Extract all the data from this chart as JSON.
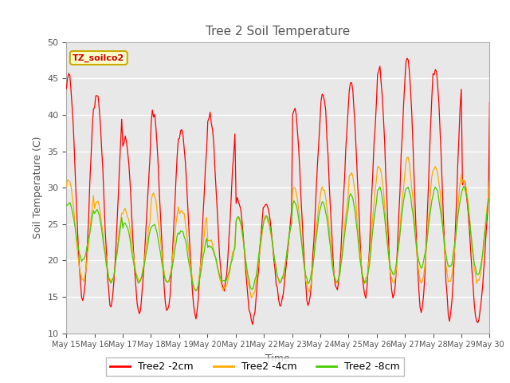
{
  "title": "Tree 2 Soil Temperature",
  "xlabel": "Time",
  "ylabel": "Soil Temperature (C)",
  "ylim": [
    10,
    50
  ],
  "annotation_text": "TZ_soilco2",
  "annotation_color": "#cc0000",
  "annotation_bg": "#ffffcc",
  "annotation_border": "#ccaa00",
  "colors": {
    "2cm": "#ff0000",
    "4cm": "#ffaa00",
    "8cm": "#44cc00"
  },
  "legend_labels": [
    "Tree2 -2cm",
    "Tree2 -4cm",
    "Tree2 -8cm"
  ],
  "plot_bg_color": "#e8e8e8",
  "fig_bg_color": "#ffffff",
  "grid_color": "#ffffff",
  "tick_labels": [
    "May 15",
    "May 16",
    "May 17",
    "May 18",
    "May 19",
    "May 20",
    "May 21",
    "May 22",
    "May 23",
    "May 24",
    "May 25",
    "May 26",
    "May 27",
    "May 28",
    "May 29",
    "May 30"
  ],
  "peaks_2cm": [
    45.5,
    43,
    37,
    40.5,
    38,
    40,
    28.5,
    28,
    41,
    43,
    44.5,
    46.5,
    48,
    46,
    31,
    44
  ],
  "troughs_2cm": [
    15,
    14,
    13,
    13,
    12.5,
    16,
    11.5,
    14,
    14,
    16,
    15,
    15,
    13,
    12,
    11.5,
    13
  ],
  "peaks_4cm": [
    31,
    28,
    27,
    29,
    27,
    23,
    26,
    26,
    30,
    30,
    32,
    33,
    34,
    33,
    31,
    32
  ],
  "troughs_4cm": [
    17,
    17,
    17,
    17,
    16,
    16,
    15,
    17,
    16,
    17,
    17,
    17,
    17,
    17,
    17,
    17
  ],
  "peaks_8cm": [
    28,
    27,
    25,
    25,
    24,
    22,
    26,
    26,
    28,
    28,
    29,
    30,
    30,
    30,
    30,
    29
  ],
  "troughs_8cm": [
    20,
    17,
    17,
    17,
    16,
    17,
    16,
    17,
    17,
    17,
    17,
    18,
    19,
    19,
    18,
    18
  ],
  "title_color": "#555555",
  "axis_label_color": "#555555",
  "tick_color": "#555555"
}
